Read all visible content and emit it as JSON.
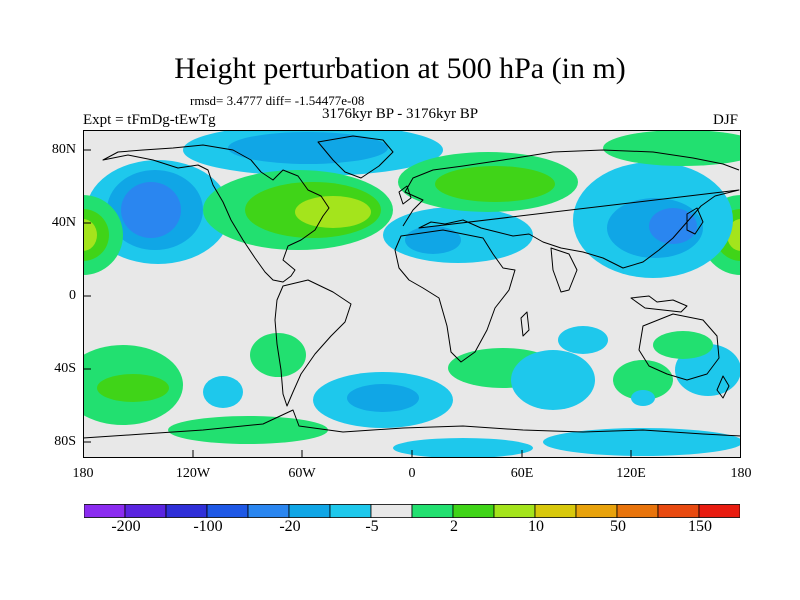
{
  "title": "Height perturbation at 500 hPa (in m)",
  "stats": "rmsd= 3.4777 diff= -1.54477e-08",
  "experiment": "Expt = tFmDg-tEwTg",
  "period": "3176kyr BP - 3176kyr BP",
  "season": "DJF",
  "lat_labels": [
    "80N",
    "40N",
    "0",
    "40S",
    "80S"
  ],
  "lon_labels": [
    "180",
    "120W",
    "60W",
    "0",
    "60E",
    "120E",
    "180"
  ],
  "colorbar": {
    "colors": [
      "#8b2cf0",
      "#5a24e0",
      "#2f2fd8",
      "#1e58e6",
      "#2a86f0",
      "#10a6e6",
      "#1ec8ec",
      "#e8e8e8",
      "#22e070",
      "#40d418",
      "#a4e41c",
      "#d8c80c",
      "#e8a20c",
      "#e8740c",
      "#e84a10",
      "#e81c10"
    ],
    "labels": [
      "-200",
      "-100",
      "-20",
      "-5",
      "2",
      "10",
      "50",
      "150"
    ]
  },
  "field_colors": {
    "background": "#e8e8e8",
    "neg_strong": "#2a86f0",
    "neg_mid": "#10a6e6",
    "neg_weak": "#1ec8ec",
    "pos_weak": "#22e070",
    "pos_mid": "#40d418",
    "pos_strong": "#a4e41c"
  }
}
